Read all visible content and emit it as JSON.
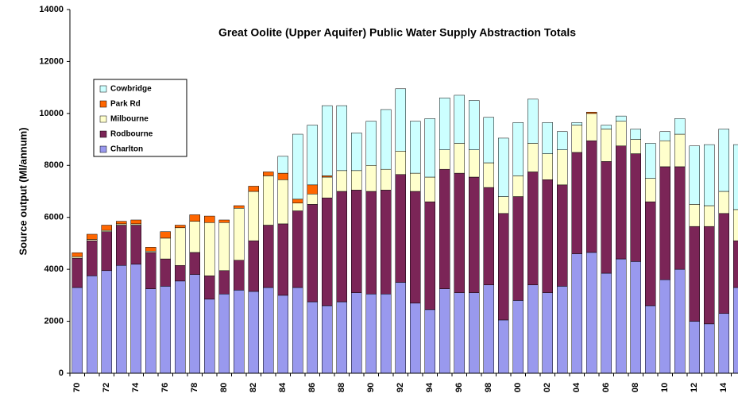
{
  "chart_data": {
    "type": "stacked_bar",
    "title": "Great Oolite (Upper Aquifer) Public Water Supply Abstraction Totals",
    "y_label": "Source output (Ml/annum)",
    "categories": [
      "70",
      null,
      "72",
      null,
      "74",
      null,
      "76",
      null,
      "78",
      null,
      "80",
      null,
      "82",
      null,
      "84",
      null,
      "86",
      null,
      "88",
      null,
      "90",
      null,
      "92",
      null,
      "94",
      null,
      "96",
      null,
      "98",
      null,
      "00",
      null,
      "02",
      null,
      "04",
      null,
      "06",
      null,
      "08",
      null,
      "10",
      null,
      "12",
      null,
      "14",
      null
    ],
    "series": [
      {
        "name": "Charlton",
        "color": "#9999ee",
        "values": [
          3300,
          3750,
          3950,
          4150,
          4200,
          3250,
          3350,
          3550,
          3800,
          2850,
          3050,
          3200,
          3150,
          3300,
          3000,
          3300,
          2750,
          2600,
          2750,
          3100,
          3050,
          3050,
          3500,
          2700,
          2450,
          3250,
          3100,
          3100,
          3400,
          2050,
          2800,
          3400,
          3100,
          3350,
          4600,
          4650,
          3850,
          4400,
          4300,
          2600,
          3600,
          4000,
          2000,
          1900,
          2300,
          3300
        ]
      },
      {
        "name": "Rodbourne",
        "color": "#7b2557",
        "values": [
          1130,
          1350,
          1500,
          1550,
          1500,
          1400,
          1050,
          600,
          850,
          900,
          900,
          1150,
          1950,
          2400,
          2750,
          2950,
          3750,
          4150,
          4250,
          3950,
          3950,
          4000,
          4150,
          4300,
          4150,
          4600,
          4600,
          4450,
          3750,
          4100,
          4000,
          4350,
          4350,
          3900,
          3900,
          4300,
          4300,
          4350,
          4150,
          4000,
          4350,
          3950,
          3650,
          3750,
          3850,
          1800
        ]
      },
      {
        "name": "Milbourne",
        "color": "#ffffcc",
        "values": [
          60,
          50,
          50,
          50,
          50,
          50,
          800,
          1450,
          1200,
          2050,
          1850,
          2000,
          1900,
          1900,
          1700,
          300,
          400,
          800,
          800,
          750,
          1000,
          800,
          900,
          700,
          950,
          750,
          1150,
          1050,
          950,
          650,
          800,
          1100,
          1000,
          1350,
          1050,
          1050,
          1250,
          950,
          550,
          900,
          1000,
          1250,
          850,
          800,
          850,
          1200
        ]
      },
      {
        "name": "Park Rd",
        "color": "#ff6600",
        "values": [
          150,
          200,
          200,
          100,
          150,
          150,
          250,
          100,
          250,
          250,
          100,
          100,
          200,
          150,
          250,
          150,
          350,
          50,
          0,
          0,
          0,
          0,
          0,
          0,
          0,
          0,
          0,
          0,
          0,
          0,
          0,
          0,
          0,
          0,
          0,
          50,
          0,
          0,
          0,
          0,
          0,
          0,
          0,
          0,
          0,
          0
        ]
      },
      {
        "name": "Cowbridge",
        "color": "#ccffff",
        "values": [
          0,
          0,
          0,
          0,
          0,
          0,
          0,
          0,
          0,
          0,
          0,
          0,
          0,
          0,
          650,
          2500,
          2300,
          2700,
          2500,
          1450,
          1700,
          2300,
          2400,
          2000,
          2250,
          2000,
          1850,
          1900,
          1750,
          2250,
          2050,
          1700,
          1200,
          700,
          100,
          0,
          150,
          200,
          400,
          1350,
          350,
          600,
          2250,
          2350,
          2400,
          2500
        ]
      }
    ],
    "ylim": [
      0,
      14000
    ],
    "yticks": [
      0,
      2000,
      4000,
      6000,
      8000,
      10000,
      12000,
      14000
    ]
  }
}
